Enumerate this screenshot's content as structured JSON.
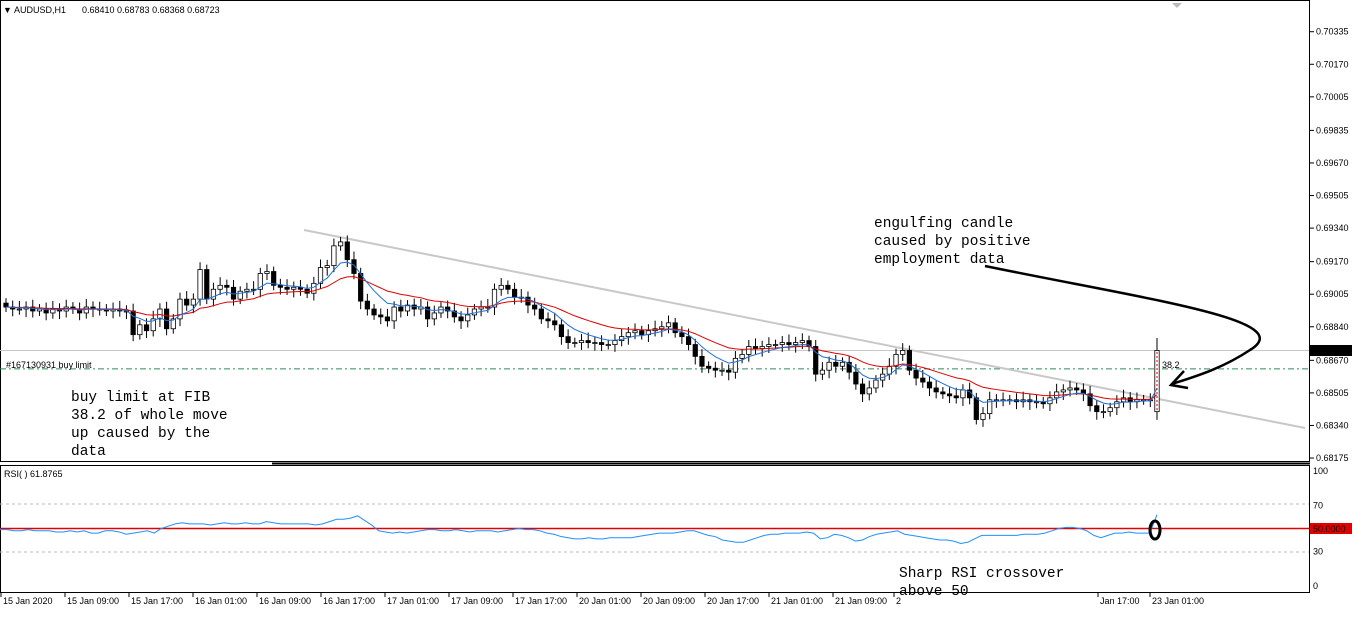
{
  "chart_data": [
    {
      "type": "candlestick",
      "header": {
        "symbol": "AUDUSD,H1",
        "ohlc": "0.68410 0.68783 0.68368 0.68723"
      },
      "price_labels": [
        "0.70335",
        "0.70170",
        "0.70005",
        "0.69835",
        "0.69670",
        "0.69505",
        "0.69340",
        "0.69170",
        "0.69005",
        "0.68840",
        "0.68670",
        "0.68505",
        "0.68340",
        "0.68175"
      ],
      "ylim": [
        0.68165,
        0.70445
      ],
      "current_price": "0.68723",
      "order_label": "#167130931 buy limit",
      "order_price": 0.68627,
      "fib_label": "38.2",
      "series_close": [
        0.6894,
        0.6893,
        0.6893,
        0.6894,
        0.6892,
        0.6893,
        0.6891,
        0.6893,
        0.6892,
        0.6894,
        0.6893,
        0.6891,
        0.6894,
        0.6893,
        0.6893,
        0.6892,
        0.6893,
        0.6892,
        0.6892,
        0.688,
        0.6885,
        0.6882,
        0.6888,
        0.6893,
        0.6883,
        0.6888,
        0.6898,
        0.6895,
        0.6898,
        0.6913,
        0.6898,
        0.6903,
        0.6905,
        0.6904,
        0.6898,
        0.6902,
        0.6903,
        0.6903,
        0.6911,
        0.6912,
        0.6905,
        0.6904,
        0.6903,
        0.6904,
        0.6903,
        0.6901,
        0.6906,
        0.6914,
        0.6915,
        0.6925,
        0.6927,
        0.6918,
        0.6911,
        0.6897,
        0.6893,
        0.689,
        0.6889,
        0.6887,
        0.6894,
        0.6892,
        0.6895,
        0.6893,
        0.6894,
        0.6888,
        0.6891,
        0.6894,
        0.6892,
        0.6889,
        0.6887,
        0.689,
        0.6893,
        0.6894,
        0.6894,
        0.6903,
        0.6905,
        0.6903,
        0.6899,
        0.6899,
        0.6895,
        0.6893,
        0.6888,
        0.6887,
        0.6885,
        0.6879,
        0.6876,
        0.6876,
        0.6877,
        0.6876,
        0.6876,
        0.6875,
        0.6875,
        0.6877,
        0.6879,
        0.6881,
        0.6882,
        0.688,
        0.6882,
        0.6883,
        0.6884,
        0.6886,
        0.6881,
        0.6879,
        0.6875,
        0.6869,
        0.6864,
        0.6863,
        0.6862,
        0.6862,
        0.6861,
        0.6868,
        0.687,
        0.6874,
        0.6873,
        0.6874,
        0.6875,
        0.6875,
        0.6876,
        0.6875,
        0.6876,
        0.6877,
        0.6874,
        0.686,
        0.6862,
        0.6866,
        0.6864,
        0.6866,
        0.6861,
        0.6855,
        0.685,
        0.6853,
        0.6857,
        0.686,
        0.6864,
        0.687,
        0.6872,
        0.6862,
        0.6858,
        0.6856,
        0.6853,
        0.6851,
        0.685,
        0.6849,
        0.6848,
        0.6852,
        0.6848,
        0.6837,
        0.684,
        0.6847,
        0.6847,
        0.6847,
        0.6847,
        0.6846,
        0.6847,
        0.6846,
        0.6846,
        0.6845,
        0.6848,
        0.6851,
        0.6852,
        0.6853,
        0.6852,
        0.685,
        0.6844,
        0.6841,
        0.6841,
        0.6843,
        0.6846,
        0.6848,
        0.6846,
        0.6847,
        0.6847,
        0.6847,
        0.6872
      ],
      "trendline": {
        "from": [
          0.0,
          0.6934
        ],
        "to": [
          1.0,
          0.6834
        ]
      },
      "annotations": [
        "engulfing candle\ncaused by positive\nemployment data",
        "buy limit at FIB\n38.2 of whole move\nup caused by the\ndata"
      ]
    },
    {
      "type": "line",
      "title": "RSI(  ) 61.8765",
      "y_ticks": [
        "100",
        "70",
        "50.0000",
        "30",
        "0"
      ],
      "ylim": [
        0,
        100
      ],
      "levels": [
        70,
        50,
        30
      ],
      "values": [
        49,
        49,
        48,
        48,
        49,
        48,
        48,
        48,
        47,
        47,
        48,
        47,
        48,
        46,
        46,
        48,
        48,
        47,
        45,
        46,
        47,
        48,
        46,
        50,
        52,
        54,
        55,
        54,
        54,
        54,
        53,
        54,
        55,
        54,
        54,
        55,
        54,
        54,
        56,
        55,
        54,
        54,
        54,
        54,
        54,
        53,
        54,
        56,
        58,
        58,
        59,
        61,
        57,
        53,
        48,
        47,
        46,
        47,
        46,
        47,
        48,
        49,
        49,
        48,
        48,
        49,
        48,
        47,
        48,
        48,
        48,
        47,
        48,
        49,
        50,
        49,
        49,
        48,
        46,
        45,
        43,
        42,
        41,
        41,
        42,
        41,
        41,
        42,
        42,
        42,
        42,
        43,
        44,
        45,
        46,
        46,
        46,
        47,
        48,
        48,
        46,
        44,
        43,
        40,
        39,
        38,
        38,
        40,
        42,
        44,
        45,
        45,
        46,
        46,
        46,
        47,
        46,
        41,
        42,
        45,
        44,
        42,
        39,
        40,
        43,
        45,
        46,
        47,
        48,
        45,
        44,
        43,
        42,
        41,
        40,
        40,
        39,
        37,
        38,
        41,
        44,
        44,
        44,
        44,
        44,
        44,
        45,
        45,
        45,
        46,
        48,
        50,
        51,
        51,
        50,
        48,
        44,
        42,
        44,
        46,
        46,
        47,
        46,
        46,
        46,
        62
      ],
      "annotation": "Sharp RSI crossover\nabove 50"
    }
  ],
  "x_axis_labels": [
    "15 Jan 2020",
    "15 Jan 09:00",
    "15 Jan 17:00",
    "16 Jan 01:00",
    "16 Jan 09:00",
    "16 Jan 17:00",
    "17 Jan 01:00",
    "17 Jan 09:00",
    "17 Jan 17:00",
    "20 Jan 01:00",
    "20 Jan 09:00",
    "20 Jan 17:00",
    "21 Jan 01:00",
    "21 Jan 09:00",
    "2",
    "Jan 17:00",
    "23 Jan 01:00"
  ],
  "colors": {
    "bullish": "#ffffff",
    "bearish": "#000000",
    "candle_stroke": "#000000",
    "ma_fast": "#1e6fd9",
    "ma_slow": "#e00000",
    "rsi": "#1e90ff",
    "trendline": "#c8c8c8",
    "order_line": "#2e8b57",
    "current_price_bg": "#000000"
  }
}
